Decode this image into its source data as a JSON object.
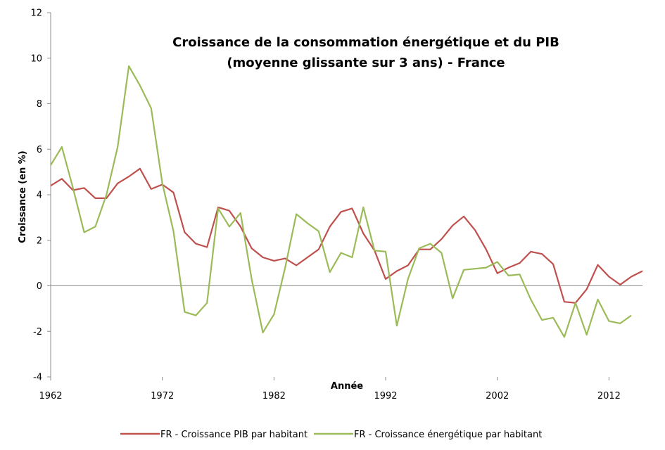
{
  "chart_data": {
    "type": "line",
    "title_line1": "Croissance de la consommation énergétique et du PIB",
    "title_line2": "(moyenne glissante sur 3 ans) - France",
    "xlabel": "Année",
    "ylabel": "Croissance (en %)",
    "xlim": [
      1962,
      2015
    ],
    "ylim": [
      -4,
      12
    ],
    "x_ticks": [
      "1962",
      "1972",
      "1982",
      "1992",
      "2002",
      "2012"
    ],
    "y_ticks": [
      "-4",
      "-2",
      "0",
      "2",
      "4",
      "6",
      "8",
      "10",
      "12"
    ],
    "legend_position": "bottom",
    "grid": false,
    "series": [
      {
        "name": "FR - Croissance PIB par habitant",
        "color": "#c0504d",
        "x": [
          1962,
          1963,
          1964,
          1965,
          1966,
          1967,
          1968,
          1969,
          1970,
          1971,
          1972,
          1973,
          1974,
          1975,
          1976,
          1977,
          1978,
          1979,
          1980,
          1981,
          1982,
          1983,
          1984,
          1985,
          1986,
          1987,
          1988,
          1989,
          1990,
          1991,
          1992,
          1993,
          1994,
          1995,
          1996,
          1997,
          1998,
          1999,
          2000,
          2001,
          2002,
          2003,
          2004,
          2005,
          2006,
          2007,
          2008,
          2009,
          2010,
          2011,
          2012,
          2013,
          2014,
          2015
        ],
        "y": [
          4.4,
          4.7,
          4.2,
          4.3,
          3.85,
          3.85,
          4.5,
          4.8,
          5.15,
          4.25,
          4.45,
          4.1,
          2.35,
          1.85,
          1.7,
          3.45,
          3.3,
          2.6,
          1.65,
          1.25,
          1.1,
          1.2,
          0.9,
          1.25,
          1.6,
          2.6,
          3.25,
          3.4,
          2.3,
          1.55,
          0.3,
          0.65,
          0.9,
          1.6,
          1.6,
          2.05,
          2.65,
          3.05,
          2.45,
          1.6,
          0.55,
          0.8,
          1.0,
          1.5,
          1.4,
          0.95,
          -0.7,
          -0.75,
          -0.15,
          0.92,
          0.4,
          0.05,
          0.4,
          0.65
        ]
      },
      {
        "name": "FR - Croissance énergétique par habitant",
        "color": "#9bbb59",
        "x": [
          1962,
          1963,
          1964,
          1965,
          1966,
          1967,
          1968,
          1969,
          1970,
          1971,
          1972,
          1973,
          1974,
          1975,
          1976,
          1977,
          1978,
          1979,
          1980,
          1981,
          1982,
          1983,
          1984,
          1985,
          1986,
          1987,
          1988,
          1989,
          1990,
          1991,
          1992,
          1993,
          1994,
          1995,
          1996,
          1997,
          1998,
          1999,
          2000,
          2001,
          2002,
          2003,
          2004,
          2005,
          2006,
          2007,
          2008,
          2009,
          2010,
          2011,
          2012,
          2013,
          2014
        ],
        "y": [
          5.3,
          6.1,
          4.3,
          2.35,
          2.6,
          4.0,
          6.1,
          9.65,
          8.8,
          7.8,
          4.5,
          2.4,
          -1.15,
          -1.3,
          -0.75,
          3.4,
          2.6,
          3.2,
          0.3,
          -2.05,
          -1.25,
          0.8,
          3.15,
          2.75,
          2.4,
          0.6,
          1.45,
          1.25,
          3.45,
          1.55,
          1.5,
          -1.75,
          0.3,
          1.65,
          1.85,
          1.45,
          -0.55,
          0.7,
          0.75,
          0.8,
          1.05,
          0.45,
          0.5,
          -0.6,
          -1.5,
          -1.4,
          -2.25,
          -0.75,
          -2.15,
          -0.6,
          -1.55,
          -1.65,
          -1.3
        ]
      }
    ]
  }
}
